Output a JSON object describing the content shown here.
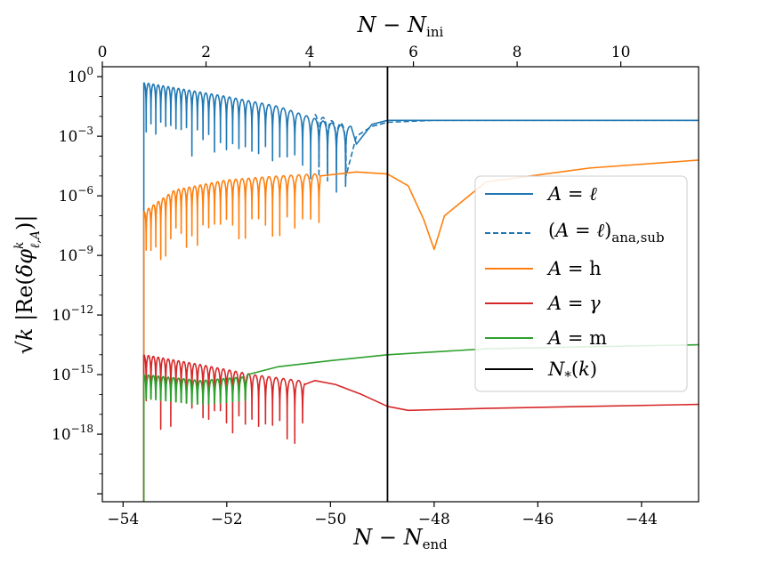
{
  "chart_data": {
    "type": "line",
    "xlabel": "N − N_end",
    "x2label": "N − N_ini",
    "ylabel": "√k |Re(δφ^k_{ℓ,A})|",
    "xlim": [
      -54.4,
      -42.9
    ],
    "x2lim": [
      -0.0,
      11.5
    ],
    "ylim_log10": [
      -21.4,
      0.5
    ],
    "yscale": "log",
    "x_ticks": [
      {
        "value": -54,
        "label": "−54"
      },
      {
        "value": -52,
        "label": "−52"
      },
      {
        "value": -50,
        "label": "−50"
      },
      {
        "value": -48,
        "label": "−48"
      },
      {
        "value": -46,
        "label": "−46"
      },
      {
        "value": -44,
        "label": "−44"
      }
    ],
    "x2_ticks": [
      {
        "value": 0,
        "label": "0"
      },
      {
        "value": 2,
        "label": "2"
      },
      {
        "value": 4,
        "label": "4"
      },
      {
        "value": 6,
        "label": "6"
      },
      {
        "value": 8,
        "label": "8"
      },
      {
        "value": 10,
        "label": "10"
      }
    ],
    "y_ticks": [
      {
        "exp": 0,
        "label_base": "10",
        "label_exp": "0"
      },
      {
        "exp": -3,
        "label_base": "10",
        "label_exp": "−3"
      },
      {
        "exp": -6,
        "label_base": "10",
        "label_exp": "−6"
      },
      {
        "exp": -9,
        "label_base": "10",
        "label_exp": "−9"
      },
      {
        "exp": -12,
        "label_base": "10",
        "label_exp": "−12"
      },
      {
        "exp": -15,
        "label_base": "10",
        "label_exp": "−15"
      },
      {
        "exp": -18,
        "label_base": "10",
        "label_exp": "−18"
      }
    ],
    "vline": {
      "x": -48.9,
      "name": "N_*(k)",
      "color": "#000000"
    },
    "series": [
      {
        "key": "l",
        "name": "A = ℓ",
        "color": "#1f77b4",
        "dash": false,
        "osc": {
          "x_start": -53.6,
          "x_end": -49.6,
          "env_log10": [
            [
              -53.6,
              -0.3
            ],
            [
              -52.0,
              -1.0
            ],
            [
              -51.0,
              -1.5
            ],
            [
              -50.2,
              -2.2
            ],
            [
              -49.7,
              -2.5
            ]
          ],
          "dip_depth": 3.8
        },
        "tail": [
          [
            -49.5,
            -3.4
          ],
          [
            -49.2,
            -2.4
          ],
          [
            -48.9,
            -2.2
          ],
          [
            -48.0,
            -2.2
          ],
          [
            -42.9,
            -2.2
          ]
        ]
      },
      {
        "key": "l_ana",
        "name": "(A = ℓ)_ana,sub",
        "color": "#1f77b4",
        "dash": true,
        "osc": {
          "x_start": -50.3,
          "x_end": -49.7,
          "env_log10": [
            [
              -50.3,
              -1.9
            ],
            [
              -49.9,
              -2.3
            ],
            [
              -49.7,
              -2.4
            ]
          ],
          "dip_depth": 3.5
        },
        "tail": [
          [
            -49.7,
            -5.0
          ],
          [
            -49.5,
            -3.0
          ],
          [
            -49.2,
            -2.5
          ],
          [
            -48.9,
            -2.3
          ],
          [
            -48.0,
            -2.2
          ],
          [
            -42.9,
            -2.2
          ]
        ]
      },
      {
        "key": "h",
        "name": "A = h",
        "color": "#ff7f0e",
        "dash": false,
        "osc": {
          "x_start": -53.6,
          "x_end": -50.2,
          "env_log10": [
            [
              -53.6,
              -6.8
            ],
            [
              -53.0,
              -5.7
            ],
            [
              -52.0,
              -5.2
            ],
            [
              -51.0,
              -5.0
            ],
            [
              -50.3,
              -4.9
            ]
          ],
          "dip_depth": 3.0
        },
        "tail": [
          [
            -50.2,
            -5.0
          ],
          [
            -49.5,
            -4.8
          ],
          [
            -48.9,
            -4.9
          ],
          [
            -48.5,
            -5.5
          ],
          [
            -48.2,
            -7.2
          ],
          [
            -48.0,
            -8.7
          ],
          [
            -47.8,
            -7.0
          ],
          [
            -47.0,
            -5.3
          ],
          [
            -45.0,
            -4.6
          ],
          [
            -42.9,
            -4.2
          ]
        ]
      },
      {
        "key": "gamma",
        "name": "A = γ",
        "color": "#d62728",
        "dash": false,
        "osc": {
          "x_start": -53.6,
          "x_end": -50.5,
          "env_log10": [
            [
              -53.6,
              -14.0
            ],
            [
              -52.5,
              -14.5
            ],
            [
              -51.5,
              -15.0
            ],
            [
              -50.6,
              -15.3
            ]
          ],
          "dip_depth": 3.6
        },
        "tail": [
          [
            -50.5,
            -15.5
          ],
          [
            -50.3,
            -15.3
          ],
          [
            -49.9,
            -15.5
          ],
          [
            -49.4,
            -16.0
          ],
          [
            -48.9,
            -16.6
          ],
          [
            -48.5,
            -16.8
          ],
          [
            -47.0,
            -16.7
          ],
          [
            -45.0,
            -16.6
          ],
          [
            -42.9,
            -16.5
          ]
        ]
      },
      {
        "key": "m",
        "name": "A = m",
        "color": "#2ca02c",
        "dash": false,
        "osc": {
          "x_start": -53.6,
          "x_end": -51.6,
          "env_log10": [
            [
              -53.6,
              -15.0
            ],
            [
              -52.5,
              -15.3
            ],
            [
              -51.6,
              -15.1
            ]
          ],
          "dip_depth": 1.2
        },
        "tail": [
          [
            -51.6,
            -15.0
          ],
          [
            -51.0,
            -14.6
          ],
          [
            -50.0,
            -14.3
          ],
          [
            -48.9,
            -14.0
          ],
          [
            -47.0,
            -13.7
          ],
          [
            -45.0,
            -13.6
          ],
          [
            -42.9,
            -13.5
          ]
        ]
      }
    ],
    "legend": {
      "placement": "center-right",
      "entries": [
        {
          "label": "A = ℓ",
          "color": "#1f77b4",
          "dash": false
        },
        {
          "label": "(A = ℓ)ana,sub",
          "color": "#1f77b4",
          "dash": true
        },
        {
          "label": "A = h",
          "color": "#ff7f0e",
          "dash": false
        },
        {
          "label": "A = γ",
          "color": "#d62728",
          "dash": false
        },
        {
          "label": "A = m",
          "color": "#2ca02c",
          "dash": false
        },
        {
          "label": "N*(k)",
          "color": "#000000",
          "dash": false
        }
      ]
    }
  }
}
